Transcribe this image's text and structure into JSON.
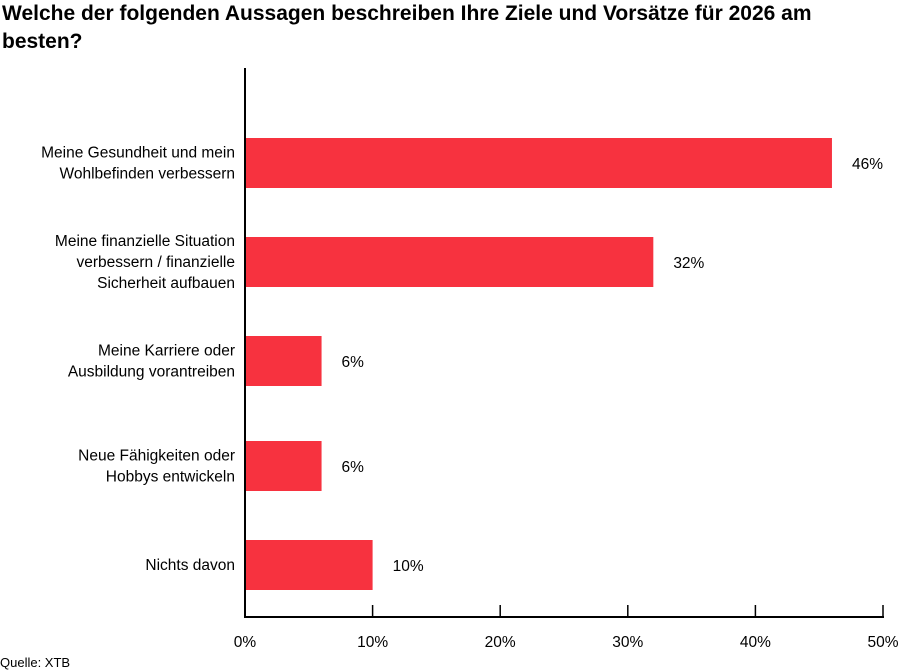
{
  "chart_data": {
    "type": "bar",
    "orientation": "horizontal",
    "title": "Welche der folgenden Aussagen beschreiben Ihre Ziele und Vorsätze für 2026 am besten?",
    "categories": [
      [
        "Meine Gesundheit und mein",
        "Wohlbefinden verbessern"
      ],
      [
        "Meine finanzielle Situation",
        "verbessern / finanzielle",
        "Sicherheit aufbauen"
      ],
      [
        "Meine Karriere oder",
        "Ausbildung vorantreiben"
      ],
      [
        "Neue Fähigkeiten oder",
        "Hobbys entwickeln"
      ],
      [
        "Nichts davon"
      ]
    ],
    "values": [
      46,
      32,
      6,
      6,
      10
    ],
    "value_labels": [
      "46%",
      "32%",
      "6%",
      "6%",
      "10%"
    ],
    "xlim": [
      0,
      50
    ],
    "xticks": [
      0,
      10,
      20,
      30,
      40,
      50
    ],
    "xtick_labels": [
      "0%",
      "10%",
      "20%",
      "30%",
      "40%",
      "50%"
    ],
    "xlabel": "",
    "ylabel": "",
    "grid": false,
    "bar_color": "#f7323f"
  },
  "source": "Quelle: XTB"
}
